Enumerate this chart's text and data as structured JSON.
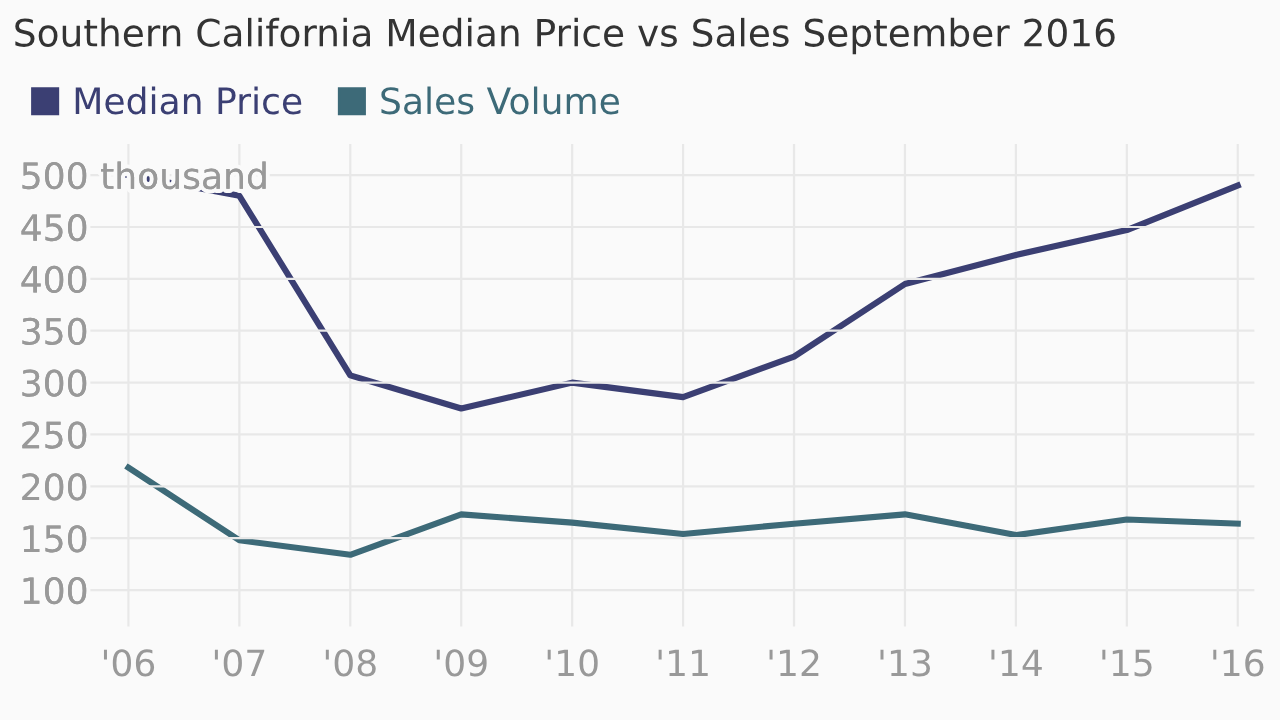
{
  "chart_data": {
    "type": "line",
    "title": "Southern California Median Price vs Sales September 2016",
    "categories": [
      "'06",
      "'07",
      "'08",
      "'09",
      "'10",
      "'11",
      "'12",
      "'13",
      "'14",
      "'15",
      "'16"
    ],
    "series": [
      {
        "name": "Median Price",
        "color": "#3b3f73",
        "values": [
          500,
          480,
          307,
          275,
          300,
          286,
          325,
          395,
          423,
          447,
          490
        ]
      },
      {
        "name": "Sales Volume",
        "color": "#3d6a78",
        "values": [
          218,
          148,
          134,
          173,
          165,
          154,
          164,
          173,
          153,
          168,
          164
        ]
      }
    ],
    "ylim": [
      65,
      530
    ],
    "yticks": [
      100,
      150,
      200,
      250,
      300,
      350,
      400,
      450,
      {
        "value": 500,
        "label": "500 thousand"
      }
    ],
    "grid": true,
    "legend": "top left",
    "marker": "none",
    "line_style": "solid"
  }
}
